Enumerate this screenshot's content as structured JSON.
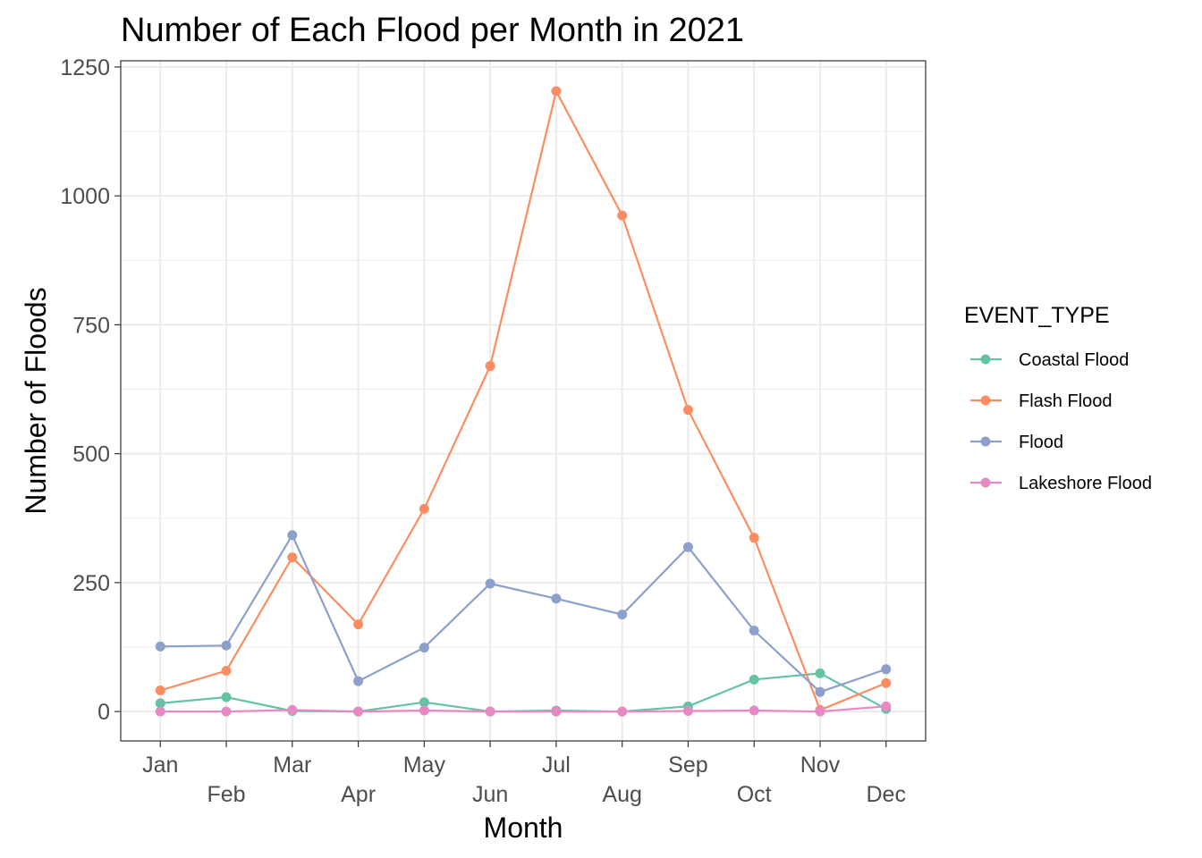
{
  "chart_data": {
    "type": "line",
    "title": "Number of Each Flood per Month in 2021",
    "xlabel": "Month",
    "ylabel": "Number of Floods",
    "categories": [
      "Jan",
      "Feb",
      "Mar",
      "Apr",
      "May",
      "Jun",
      "Jul",
      "Aug",
      "Sep",
      "Oct",
      "Nov",
      "Dec"
    ],
    "yticks": [
      0,
      250,
      500,
      750,
      1000,
      1250
    ],
    "ylim": [
      -57,
      1262
    ],
    "grid": true,
    "legend": {
      "title": "EVENT_TYPE",
      "placement": "right"
    },
    "series": [
      {
        "name": "Coastal Flood",
        "color": "#66c2a5",
        "values": [
          16,
          28,
          1,
          0,
          18,
          0,
          2,
          0,
          10,
          62,
          74,
          5
        ]
      },
      {
        "name": "Flash Flood",
        "color": "#fc8d62",
        "values": [
          41,
          79,
          299,
          169,
          393,
          670,
          1203,
          962,
          585,
          337,
          3,
          55
        ]
      },
      {
        "name": "Flood",
        "color": "#8da0cb",
        "values": [
          126,
          128,
          342,
          59,
          124,
          248,
          219,
          188,
          319,
          157,
          38,
          82
        ]
      },
      {
        "name": "Lakeshore Flood",
        "color": "#e78ac3",
        "values": [
          0,
          0,
          3,
          0,
          2,
          0,
          0,
          0,
          1,
          2,
          0,
          10
        ]
      }
    ]
  }
}
